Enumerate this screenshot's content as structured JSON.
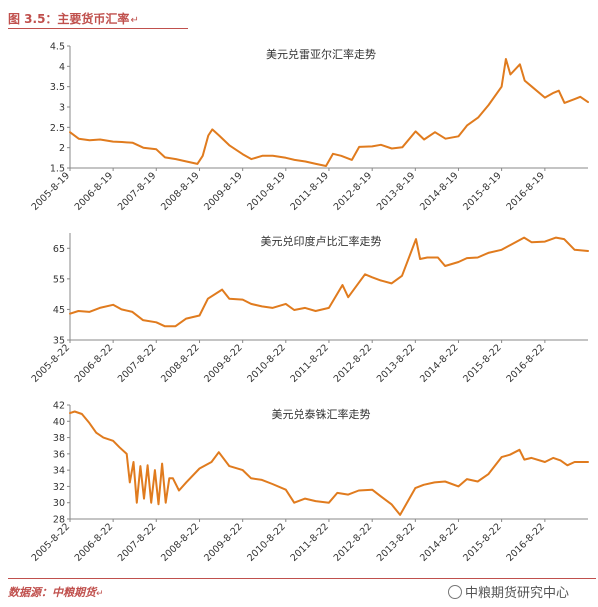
{
  "figure": {
    "title": "图 3.5：主要货币汇率",
    "title_mark": "↵",
    "source": "数据源：中粮期货",
    "source_mark": "↵",
    "watermark": "中粮期货研究中心"
  },
  "colors": {
    "line": "#e07b1e",
    "axis": "#888888",
    "accent": "#c0504d"
  },
  "chart_data": [
    {
      "type": "line",
      "title": "美元兑雷亚尔汇率走势",
      "ylim": [
        1.5,
        4.5
      ],
      "yticks": [
        1.5,
        2,
        2.5,
        3,
        3.5,
        4,
        4.5
      ],
      "ytick_labels": [
        "1.5",
        "2",
        "2.5",
        "3",
        "3.5",
        "4",
        "4.5"
      ],
      "xlim": [
        "2005-08-19",
        "2017-08-19"
      ],
      "xticks": [
        "2005-8-19",
        "2006-8-19",
        "2007-8-19",
        "2008-8-19",
        "2009-8-19",
        "2010-8-19",
        "2011-8-19",
        "2012-8-19",
        "2013-8-19",
        "2014-8-19",
        "2015-8-19",
        "2016-8-19"
      ],
      "series": [
        {
          "x": [
            "2005-08-19",
            "2005-11-01",
            "2006-02-01",
            "2006-05-01",
            "2006-08-19",
            "2006-11-01",
            "2007-02-01",
            "2007-05-01",
            "2007-08-19",
            "2007-11-01",
            "2008-02-01",
            "2008-05-01",
            "2008-08-01",
            "2008-09-15",
            "2008-11-01",
            "2008-12-05",
            "2009-02-01",
            "2009-05-01",
            "2009-08-19",
            "2009-11-01",
            "2010-02-01",
            "2010-05-01",
            "2010-08-19",
            "2010-11-01",
            "2011-02-01",
            "2011-05-01",
            "2011-07-25",
            "2011-09-22",
            "2011-12-01",
            "2012-02-29",
            "2012-05-01",
            "2012-08-19",
            "2012-11-01",
            "2013-02-01",
            "2013-05-01",
            "2013-08-21",
            "2013-11-01",
            "2014-02-01",
            "2014-05-01",
            "2014-08-19",
            "2014-11-01",
            "2015-02-01",
            "2015-05-01",
            "2015-08-19",
            "2015-09-24",
            "2015-11-01",
            "2016-01-21",
            "2016-03-01",
            "2016-05-01",
            "2016-08-19",
            "2016-11-01",
            "2016-12-15",
            "2017-02-01",
            "2017-05-01",
            "2017-06-15",
            "2017-08-19"
          ],
          "values": [
            2.38,
            2.22,
            2.18,
            2.2,
            2.15,
            2.14,
            2.12,
            2.0,
            1.96,
            1.76,
            1.72,
            1.66,
            1.6,
            1.8,
            2.3,
            2.45,
            2.3,
            2.05,
            1.84,
            1.72,
            1.8,
            1.8,
            1.75,
            1.7,
            1.66,
            1.6,
            1.55,
            1.85,
            1.8,
            1.7,
            2.02,
            2.03,
            2.07,
            1.98,
            2.01,
            2.4,
            2.2,
            2.38,
            2.22,
            2.28,
            2.55,
            2.74,
            3.05,
            3.5,
            4.18,
            3.8,
            4.05,
            3.65,
            3.5,
            3.23,
            3.35,
            3.4,
            3.1,
            3.2,
            3.25,
            3.12
          ]
        }
      ]
    },
    {
      "type": "line",
      "title": "美元兑印度卢比汇率走势",
      "ylim": [
        35,
        70
      ],
      "yticks": [
        35,
        45,
        55,
        65
      ],
      "ytick_labels": [
        "35",
        "45",
        "55",
        "65"
      ],
      "xlim": [
        "2005-08-22",
        "2017-08-22"
      ],
      "xticks": [
        "2005-8-22",
        "2006-8-22",
        "2007-8-22",
        "2008-8-22",
        "2009-8-22",
        "2010-8-22",
        "2011-8-22",
        "2012-8-22",
        "2013-8-22",
        "2014-8-22",
        "2015-8-22",
        "2016-8-22"
      ],
      "series": [
        {
          "x": [
            "2005-08-22",
            "2005-11-01",
            "2006-02-01",
            "2006-05-01",
            "2006-08-22",
            "2006-11-01",
            "2007-02-01",
            "2007-05-01",
            "2007-08-22",
            "2007-11-01",
            "2008-02-01",
            "2008-05-01",
            "2008-08-22",
            "2008-11-01",
            "2009-03-01",
            "2009-05-01",
            "2009-08-22",
            "2009-11-01",
            "2010-02-01",
            "2010-05-01",
            "2010-08-22",
            "2010-11-01",
            "2011-02-01",
            "2011-05-01",
            "2011-08-22",
            "2011-12-15",
            "2012-02-01",
            "2012-06-22",
            "2012-08-22",
            "2012-11-01",
            "2013-02-01",
            "2013-05-01",
            "2013-08-28",
            "2013-10-01",
            "2013-12-01",
            "2014-03-01",
            "2014-05-01",
            "2014-08-22",
            "2014-11-01",
            "2015-02-01",
            "2015-05-01",
            "2015-08-22",
            "2015-11-01",
            "2016-02-28",
            "2016-05-01",
            "2016-08-22",
            "2016-11-24",
            "2017-02-01",
            "2017-05-01",
            "2017-08-22"
          ],
          "values": [
            43.6,
            44.5,
            44.2,
            45.5,
            46.5,
            45.0,
            44.2,
            41.5,
            40.8,
            39.5,
            39.5,
            42.0,
            43.0,
            48.5,
            51.5,
            48.5,
            48.2,
            46.8,
            46.0,
            45.5,
            46.8,
            44.8,
            45.5,
            44.5,
            45.5,
            53.0,
            49.0,
            56.5,
            55.5,
            54.5,
            53.5,
            56.0,
            68.0,
            61.5,
            62.0,
            62.0,
            59.2,
            60.5,
            61.8,
            62.0,
            63.5,
            64.5,
            66.0,
            68.5,
            67.0,
            67.2,
            68.5,
            68.0,
            64.5,
            64.1
          ]
        }
      ]
    },
    {
      "type": "line",
      "title": "美元兑泰铢汇率走势",
      "ylim": [
        28,
        42
      ],
      "yticks": [
        28,
        30,
        32,
        34,
        36,
        38,
        40,
        42
      ],
      "ytick_labels": [
        "28",
        "30",
        "32",
        "34",
        "36",
        "38",
        "40",
        "42"
      ],
      "xlim": [
        "2005-08-22",
        "2017-08-22"
      ],
      "xticks": [
        "2005-8-22",
        "2006-8-22",
        "2007-8-22",
        "2008-8-22",
        "2009-8-22",
        "2010-8-22",
        "2011-8-22",
        "2012-8-22",
        "2013-8-22",
        "2014-8-22",
        "2015-8-22",
        "2016-8-22"
      ],
      "series": [
        {
          "x": [
            "2005-08-22",
            "2005-10-01",
            "2005-12-01",
            "2006-02-01",
            "2006-04-01",
            "2006-06-01",
            "2006-08-22",
            "2006-10-15",
            "2006-12-15",
            "2007-01-10",
            "2007-02-10",
            "2007-03-10",
            "2007-04-10",
            "2007-05-10",
            "2007-06-10",
            "2007-07-10",
            "2007-08-10",
            "2007-09-10",
            "2007-10-10",
            "2007-11-10",
            "2007-12-10",
            "2008-01-10",
            "2008-03-01",
            "2008-05-01",
            "2008-08-22",
            "2008-12-01",
            "2009-02-01",
            "2009-05-01",
            "2009-08-22",
            "2009-11-01",
            "2010-02-01",
            "2010-05-01",
            "2010-08-22",
            "2010-11-01",
            "2011-02-01",
            "2011-05-01",
            "2011-08-22",
            "2011-11-01",
            "2012-02-01",
            "2012-05-01",
            "2012-08-22",
            "2012-11-01",
            "2013-02-01",
            "2013-04-15",
            "2013-08-22",
            "2013-11-01",
            "2014-02-01",
            "2014-05-01",
            "2014-08-22",
            "2014-11-01",
            "2015-02-01",
            "2015-05-01",
            "2015-08-22",
            "2015-11-01",
            "2016-01-20",
            "2016-03-01",
            "2016-05-01",
            "2016-08-22",
            "2016-11-01",
            "2017-01-01",
            "2017-03-01",
            "2017-05-01",
            "2017-08-22"
          ],
          "values": [
            41.0,
            41.2,
            40.9,
            39.8,
            38.6,
            38.0,
            37.6,
            36.8,
            36.0,
            32.5,
            35.0,
            30.0,
            34.5,
            30.5,
            34.6,
            30.0,
            34.0,
            29.8,
            34.8,
            30.0,
            33.0,
            33.0,
            31.5,
            32.5,
            34.2,
            35.0,
            36.2,
            34.5,
            34.0,
            33.0,
            32.8,
            32.3,
            31.6,
            30.0,
            30.5,
            30.2,
            30.0,
            31.2,
            31.0,
            31.5,
            31.6,
            30.8,
            29.8,
            28.5,
            31.8,
            32.2,
            32.5,
            32.6,
            32.0,
            32.9,
            32.6,
            33.5,
            35.6,
            35.9,
            36.5,
            35.3,
            35.5,
            35.0,
            35.5,
            35.2,
            34.6,
            35.0,
            35.0
          ]
        }
      ]
    }
  ]
}
